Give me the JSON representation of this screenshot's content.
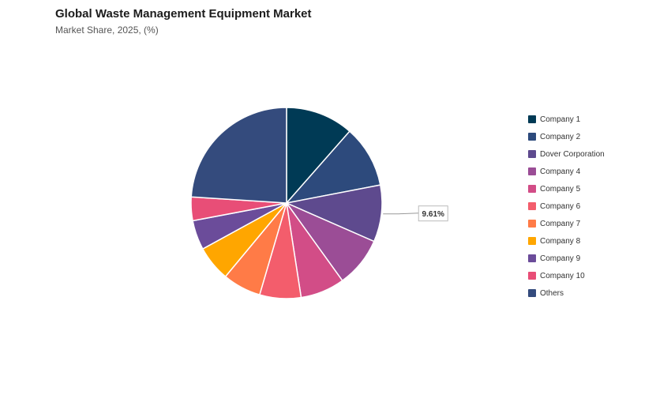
{
  "header": {
    "title": "Global Waste Management Equipment Market",
    "subtitle": "Market Share, 2025, (%)"
  },
  "chart_data": {
    "type": "pie",
    "title": "Global Waste Management Equipment Market",
    "subtitle": "Market Share, 2025, (%)",
    "categories": [
      "Company 1",
      "Company 2",
      "Dover Corporation",
      "Company 4",
      "Company 5",
      "Company 6",
      "Company 7",
      "Company 8",
      "Company 9",
      "Company 10",
      "Others"
    ],
    "values": [
      11.5,
      10.5,
      9.61,
      8.5,
      7.5,
      7.0,
      6.5,
      6.0,
      5.0,
      4.0,
      24.0
    ],
    "colors": [
      "#003a55",
      "#2d4a7c",
      "#5e4a8e",
      "#9b4d96",
      "#d24d87",
      "#f35d6c",
      "#ff7b47",
      "#ffa600",
      "#6b4c9a",
      "#e84e77",
      "#344b7d"
    ],
    "annotation": "9.61%",
    "annotated_category": "Dover Corporation",
    "legend_position": "right"
  }
}
